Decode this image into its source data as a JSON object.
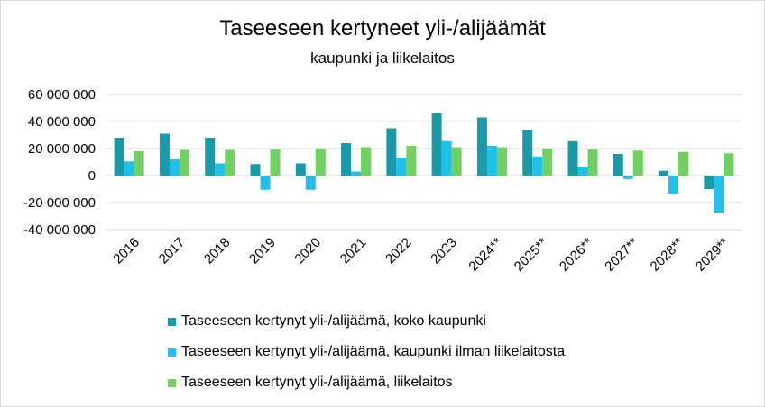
{
  "chart_data": {
    "type": "bar",
    "title": "Taseeseen kertyneet yli-/alijäämät",
    "subtitle": "kaupunki ja liikelaitos",
    "categories": [
      "2016",
      "2017",
      "2018",
      "2019",
      "2020",
      "2021",
      "2022",
      "2023",
      "2024**",
      "2025**",
      "2026**",
      "2027**",
      "2028**",
      "2029**"
    ],
    "y_ticks": [
      "60 000 000",
      "40 000 000",
      "20 000 000",
      "0",
      "-20 000 000",
      "-40 000 000"
    ],
    "ylim": [
      -40000000,
      60000000
    ],
    "grid": true,
    "legend_position": "bottom",
    "series": [
      {
        "name": "Taseeseen kertynyt yli-/alijäämä, koko kaupunki",
        "color": "#1a9aa8",
        "values": [
          28000000,
          31000000,
          28000000,
          8500000,
          9000000,
          24000000,
          35000000,
          46000000,
          43000000,
          34000000,
          25500000,
          16000000,
          3500000,
          -10000000
        ]
      },
      {
        "name": "Taseeseen kertynyt yli-/alijäämä,  kaupunki ilman liikelaitosta",
        "color": "#1fc1e8",
        "values": [
          10500000,
          12000000,
          9000000,
          -10500000,
          -10500000,
          3000000,
          13000000,
          25500000,
          22000000,
          14000000,
          6000000,
          -2500000,
          -13500000,
          -27500000
        ]
      },
      {
        "name": "Taseeseen kertynyt yli-/alijäämä, liikelaitos",
        "color": "#72d062",
        "values": [
          18000000,
          19000000,
          19000000,
          19500000,
          20000000,
          21000000,
          22000000,
          21000000,
          21000000,
          20000000,
          19500000,
          18500000,
          17500000,
          16500000
        ]
      }
    ]
  }
}
